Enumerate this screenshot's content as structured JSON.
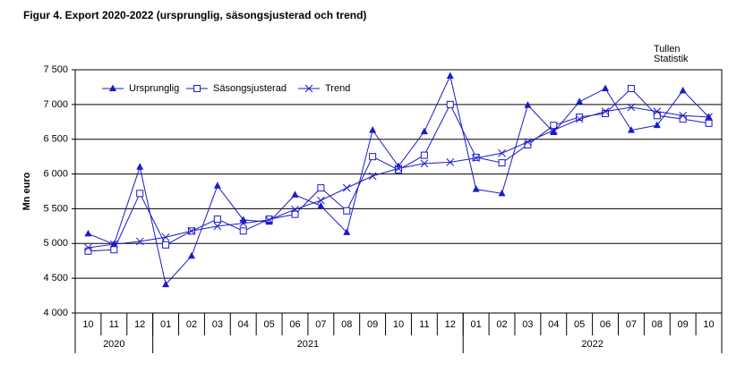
{
  "chart_data": {
    "type": "line",
    "title": "Figur  4. Export 2020-2022 (ursprunglig, säsongsjusterad och trend)",
    "ylabel": "Mn euro",
    "source": [
      "Tullen",
      "Statistik"
    ],
    "categories": [
      "10",
      "11",
      "12",
      "01",
      "02",
      "03",
      "04",
      "05",
      "06",
      "07",
      "08",
      "09",
      "10",
      "11",
      "12",
      "01",
      "02",
      "03",
      "04",
      "05",
      "06",
      "07",
      "08",
      "09",
      "10"
    ],
    "years": [
      "2020",
      "2021",
      "2022"
    ],
    "ylim": [
      4000,
      7500
    ],
    "yticks": [
      {
        "value": 4000,
        "label": "4 000"
      },
      {
        "value": 4500,
        "label": "4 500"
      },
      {
        "value": 5000,
        "label": "5 000"
      },
      {
        "value": 5500,
        "label": "5 500"
      },
      {
        "value": 6000,
        "label": "6 000"
      },
      {
        "value": 6500,
        "label": "6 500"
      },
      {
        "value": 7000,
        "label": "7 000"
      },
      {
        "value": 7500,
        "label": "7 500"
      }
    ],
    "grid": true,
    "legend": "top-left",
    "series": [
      {
        "name": "Ursprunglig",
        "color": "#1a1acc",
        "marker": "triangle",
        "values": [
          5140,
          4990,
          6100,
          4410,
          4820,
          5830,
          5340,
          5310,
          5700,
          5540,
          5160,
          6630,
          6110,
          6610,
          7410,
          5780,
          5720,
          6990,
          6600,
          7040,
          7230,
          6630,
          6700,
          7200,
          6820
        ]
      },
      {
        "name": "Säsongsjusterad",
        "color": "#1a1acc",
        "marker": "square",
        "values": [
          4890,
          4910,
          5720,
          4980,
          5180,
          5350,
          5180,
          5350,
          5420,
          5800,
          5470,
          6250,
          6060,
          6270,
          7000,
          6240,
          6160,
          6420,
          6700,
          6820,
          6870,
          7230,
          6840,
          6790,
          6730
        ]
      },
      {
        "name": "Trend",
        "color": "#1a1acc",
        "marker": "x",
        "values": [
          4940,
          4990,
          5030,
          5090,
          5180,
          5250,
          5290,
          5340,
          5490,
          5620,
          5800,
          5970,
          6080,
          6150,
          6170,
          6230,
          6300,
          6460,
          6630,
          6790,
          6900,
          6960,
          6900,
          6840,
          6820
        ]
      }
    ]
  }
}
